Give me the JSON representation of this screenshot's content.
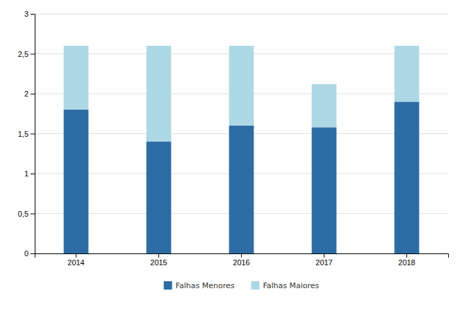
{
  "chart_data": {
    "type": "bar",
    "stacked": true,
    "categories": [
      "2014",
      "2015",
      "2016",
      "2017",
      "2018"
    ],
    "series": [
      {
        "name": "Falhas Menores",
        "color": "#2E6DA4",
        "values": [
          1.8,
          1.4,
          1.6,
          1.58,
          1.9
        ]
      },
      {
        "name": "Falhas Maiores",
        "color": "#ADD8E6",
        "values": [
          0.8,
          1.2,
          1.0,
          0.54,
          0.7
        ]
      }
    ],
    "ylim": [
      0,
      3.0
    ],
    "yticks": [
      0,
      {
        "value": 0.5,
        "label": "0,5"
      },
      1,
      {
        "value": 1.5,
        "label": "1,5"
      },
      2,
      {
        "value": 2.5,
        "label": "2,5"
      },
      3
    ],
    "grid": true,
    "legend": "bottom"
  }
}
